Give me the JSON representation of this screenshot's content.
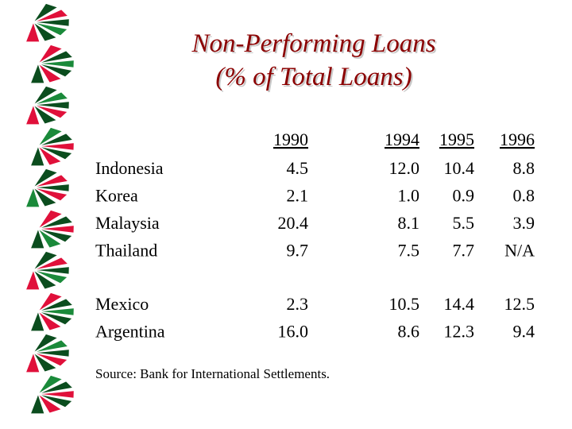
{
  "title": {
    "line1": "Non-Performing Loans",
    "line2": "(% of Total Loans)"
  },
  "table": {
    "header": [
      "1990",
      "1994",
      "1995",
      "1996"
    ],
    "groups": [
      [
        {
          "label": "Indonesia",
          "values": [
            "4.5",
            "12.0",
            "10.4",
            "8.8"
          ]
        },
        {
          "label": "Korea",
          "values": [
            "2.1",
            "1.0",
            "0.9",
            "0.8"
          ]
        },
        {
          "label": "Malaysia",
          "values": [
            "20.4",
            "8.1",
            "5.5",
            "3.9"
          ]
        },
        {
          "label": "Thailand",
          "values": [
            "9.7",
            "7.5",
            "7.7",
            "N/A"
          ]
        }
      ],
      [
        {
          "label": "Mexico",
          "values": [
            "2.3",
            "10.5",
            "14.4",
            "12.5"
          ]
        },
        {
          "label": "Argentina",
          "values": [
            "16.0",
            "8.6",
            "12.3",
            "9.4"
          ]
        }
      ]
    ]
  },
  "source": "Source: Bank for International Settlements."
}
